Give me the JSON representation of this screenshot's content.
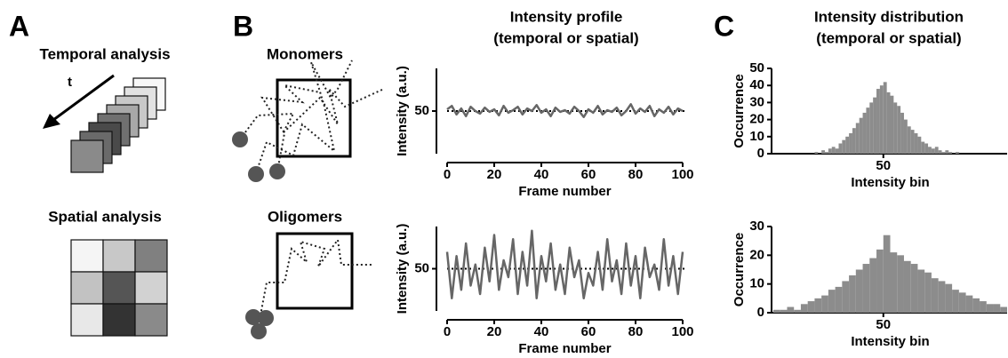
{
  "panels": {
    "labels": [
      "A",
      "B",
      "C"
    ],
    "temporal_title": "Temporal analysis",
    "time_label": "t",
    "spatial_title": "Spatial analysis",
    "monomers_title": "Monomers",
    "oligomers_title": "Oligomers",
    "profile_title": [
      "Intensity profile",
      "(temporal or spatial)"
    ],
    "distribution_title": [
      "Intensity distribution",
      "(temporal or spatial)"
    ]
  },
  "chart_data": [
    {
      "type": "line",
      "xlabel": "Frame number",
      "ylabel": "Intensity (a.u.)",
      "color": "#666666",
      "x": [
        0,
        2,
        4,
        6,
        8,
        10,
        12,
        14,
        16,
        18,
        20,
        22,
        24,
        26,
        28,
        30,
        32,
        34,
        36,
        38,
        40,
        42,
        44,
        46,
        48,
        50,
        52,
        54,
        56,
        58,
        60,
        62,
        64,
        66,
        68,
        70,
        72,
        74,
        76,
        78,
        80,
        82,
        84,
        86,
        88,
        90,
        92,
        94,
        96,
        98,
        100
      ],
      "values": [
        52,
        56,
        46,
        53,
        44,
        55,
        50,
        47,
        54,
        49,
        52,
        45,
        56,
        48,
        51,
        55,
        46,
        53,
        50,
        57,
        48,
        52,
        44,
        54,
        49,
        51,
        47,
        55,
        50,
        43,
        52,
        48,
        56,
        46,
        51,
        49,
        54,
        45,
        50,
        58,
        47,
        53,
        49,
        56,
        44,
        52,
        48,
        55,
        46,
        53,
        50
      ],
      "xlim": [
        0,
        100
      ],
      "xticks": [
        0,
        20,
        40,
        60,
        80,
        100
      ],
      "ylim": [
        0,
        100
      ],
      "yticks": [
        50
      ],
      "reference_line": 50
    },
    {
      "type": "line",
      "xlabel": "Frame number",
      "ylabel": "Intensity (a.u.)",
      "color": "#666666",
      "x": [
        0,
        2,
        4,
        6,
        8,
        10,
        12,
        14,
        16,
        18,
        20,
        22,
        24,
        26,
        28,
        30,
        32,
        34,
        36,
        38,
        40,
        42,
        44,
        46,
        48,
        50,
        52,
        54,
        56,
        58,
        60,
        62,
        64,
        66,
        68,
        70,
        72,
        74,
        76,
        78,
        80,
        82,
        84,
        86,
        88,
        90,
        92,
        94,
        96,
        98,
        100
      ],
      "values": [
        70,
        15,
        65,
        25,
        80,
        30,
        55,
        20,
        75,
        35,
        90,
        25,
        60,
        40,
        85,
        20,
        70,
        30,
        95,
        15,
        65,
        35,
        80,
        25,
        55,
        20,
        75,
        40,
        60,
        15,
        45,
        30,
        70,
        25,
        85,
        35,
        60,
        20,
        80,
        30,
        65,
        15,
        75,
        40,
        55,
        25,
        85,
        30,
        65,
        20,
        70
      ],
      "xlim": [
        0,
        100
      ],
      "xticks": [
        0,
        20,
        40,
        60,
        80,
        100
      ],
      "ylim": [
        0,
        100
      ],
      "yticks": [
        50
      ],
      "reference_line": 50
    },
    {
      "type": "histogram",
      "xlabel": "Intensity bin",
      "ylabel": "Occurrence",
      "color": "#8c8c8c",
      "bins": [
        30,
        31,
        32,
        33,
        34,
        35,
        36,
        37,
        38,
        39,
        40,
        41,
        42,
        43,
        44,
        45,
        46,
        47,
        48,
        49,
        50,
        51,
        52,
        53,
        54,
        55,
        56,
        57,
        58,
        59,
        60,
        61,
        62,
        63,
        64,
        65,
        66,
        67,
        68,
        69,
        70,
        71,
        72
      ],
      "counts": [
        1,
        0,
        2,
        1,
        3,
        4,
        3,
        6,
        8,
        10,
        12,
        15,
        18,
        21,
        24,
        27,
        30,
        33,
        38,
        40,
        42,
        36,
        34,
        30,
        28,
        24,
        20,
        16,
        14,
        12,
        10,
        7,
        6,
        4,
        3,
        4,
        2,
        1,
        2,
        1,
        0,
        1
      ],
      "xlim": [
        18,
        86
      ],
      "xticks": [
        50
      ],
      "ylim": [
        0,
        50
      ],
      "yticks": [
        0,
        10,
        20,
        30,
        40,
        50
      ]
    },
    {
      "type": "histogram",
      "xlabel": "Intensity bin",
      "ylabel": "Occurrence",
      "color": "#8c8c8c",
      "bins": [
        18,
        20,
        22,
        24,
        26,
        28,
        30,
        32,
        34,
        36,
        38,
        40,
        42,
        44,
        46,
        48,
        50,
        52,
        54,
        56,
        58,
        60,
        62,
        64,
        66,
        68,
        70,
        72,
        74,
        76,
        78,
        80,
        82,
        84,
        86
      ],
      "counts": [
        1,
        1,
        2,
        1,
        3,
        4,
        5,
        6,
        8,
        9,
        11,
        13,
        15,
        17,
        19,
        22,
        27,
        21,
        20,
        18,
        17,
        15,
        14,
        12,
        11,
        10,
        8,
        7,
        6,
        5,
        4,
        3,
        3,
        2
      ],
      "xlim": [
        18,
        86
      ],
      "xticks": [
        50
      ],
      "ylim": [
        0,
        30
      ],
      "yticks": [
        0,
        10,
        20,
        30
      ]
    }
  ]
}
